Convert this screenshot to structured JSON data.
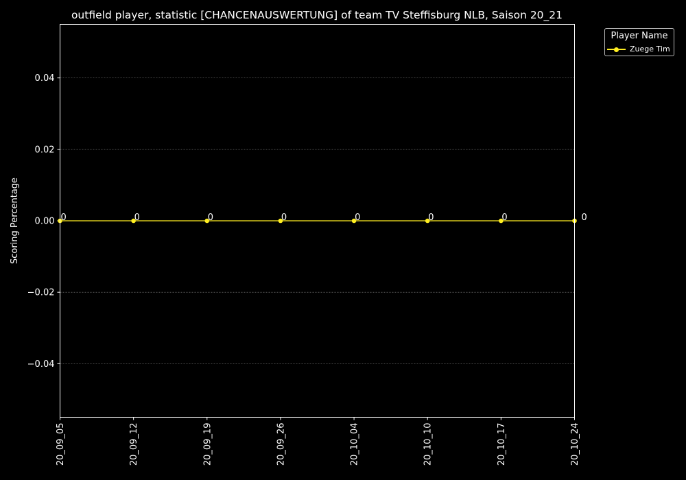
{
  "chart_data": {
    "type": "line",
    "title": "outfield player, statistic [CHANCENAUSWERTUNG] of team TV Steffisburg NLB, Saison 20_21",
    "xlabel": "",
    "ylabel": "Scoring Percentage",
    "x": [
      "20_09_05",
      "20_09_12",
      "20_09_19",
      "20_09_26",
      "20_10_04",
      "20_10_10",
      "20_10_17",
      "20_10_24"
    ],
    "ylim": [
      -0.055,
      0.055
    ],
    "yticks": [
      -0.04,
      -0.02,
      0.0,
      0.02,
      0.04
    ],
    "ytick_labels": [
      "−0.04",
      "−0.02",
      "0.00",
      "0.02",
      "0.04"
    ],
    "grid": "horizontal dashed",
    "legend": {
      "title": "Player Name",
      "position": "outside top-right"
    },
    "series": [
      {
        "name": "Zuege Tim",
        "color": "#ffee22",
        "values": [
          0,
          0,
          0,
          0,
          0,
          0,
          0,
          0
        ],
        "labels": [
          "0",
          "0",
          "0",
          "0",
          "0",
          "0",
          "0",
          "0"
        ]
      }
    ],
    "background": "#000000"
  }
}
